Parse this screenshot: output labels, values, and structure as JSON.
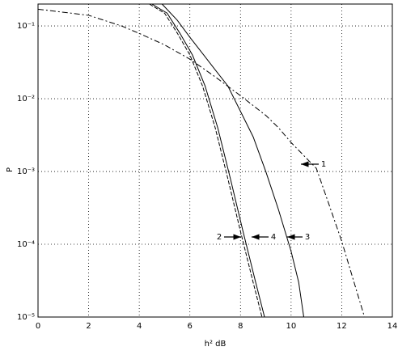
{
  "chart_data": {
    "type": "line",
    "xlabel": "h² dB",
    "ylabel": "P",
    "xlim": [
      0,
      14
    ],
    "xticks": [
      0,
      2,
      4,
      6,
      8,
      10,
      12,
      14
    ],
    "ylim": [
      1e-05,
      0.2
    ],
    "log_y": true,
    "grid": true,
    "yticks": [
      {
        "value": 1e-05,
        "label": "10⁻⁵"
      },
      {
        "value": 0.0001,
        "label": "10⁻⁴"
      },
      {
        "value": 0.001,
        "label": "10⁻³"
      },
      {
        "value": 0.01,
        "label": "10⁻²"
      },
      {
        "value": 0.1,
        "label": "10⁻¹"
      }
    ],
    "series": [
      {
        "name": "1",
        "color": "#000000",
        "dash": "7,3,2,3",
        "x": [
          0,
          2,
          3.3,
          4,
          5,
          6,
          7,
          8,
          9,
          9.5,
          10,
          11,
          11.5,
          12,
          12.5,
          12.9
        ],
        "values": [
          0.17,
          0.14,
          0.1,
          0.079,
          0.055,
          0.035,
          0.02,
          0.011,
          0.0059,
          0.004,
          0.0025,
          0.0011,
          0.00035,
          0.00011,
          2.9e-05,
          1e-05
        ]
      },
      {
        "name": "2",
        "color": "#000000",
        "dash": "5,2",
        "x": [
          4.4,
          5,
          5.5,
          6,
          6.5,
          7,
          7.5,
          8,
          8.5,
          8.85
        ],
        "values": [
          0.2,
          0.15,
          0.08,
          0.04,
          0.015,
          0.004,
          0.0008,
          0.00015,
          3e-05,
          1e-05
        ]
      },
      {
        "name": "3",
        "color": "#000000",
        "dash": "none",
        "x": [
          4.9,
          5.5,
          6,
          7,
          7.5,
          8.5,
          9,
          9.5,
          10,
          10.3,
          10.5
        ],
        "values": [
          0.2,
          0.12,
          0.07,
          0.025,
          0.015,
          0.003,
          0.001,
          0.0003,
          8e-05,
          3e-05,
          1e-05
        ]
      },
      {
        "name": "4",
        "color": "#000000",
        "dash": "none",
        "x": [
          4.5,
          5.1,
          5.6,
          6.1,
          6.6,
          7.1,
          7.6,
          8.1,
          8.6,
          8.95
        ],
        "values": [
          0.2,
          0.15,
          0.08,
          0.04,
          0.015,
          0.004,
          0.0008,
          0.00015,
          3e-05,
          1e-05
        ]
      }
    ]
  }
}
